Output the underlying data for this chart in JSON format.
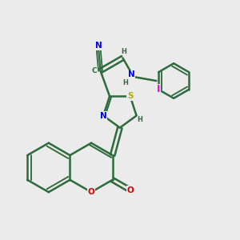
{
  "bg_color": "#ebebeb",
  "bond_color": "#2d6b3c",
  "bond_width": 1.8,
  "atom_colors": {
    "N": "#0000ee",
    "O": "#dd0000",
    "S": "#bbaa00",
    "I": "#ee00ee",
    "C": "#2d6b3c",
    "H": "#2d6b3c"
  },
  "font_size": 7.5
}
